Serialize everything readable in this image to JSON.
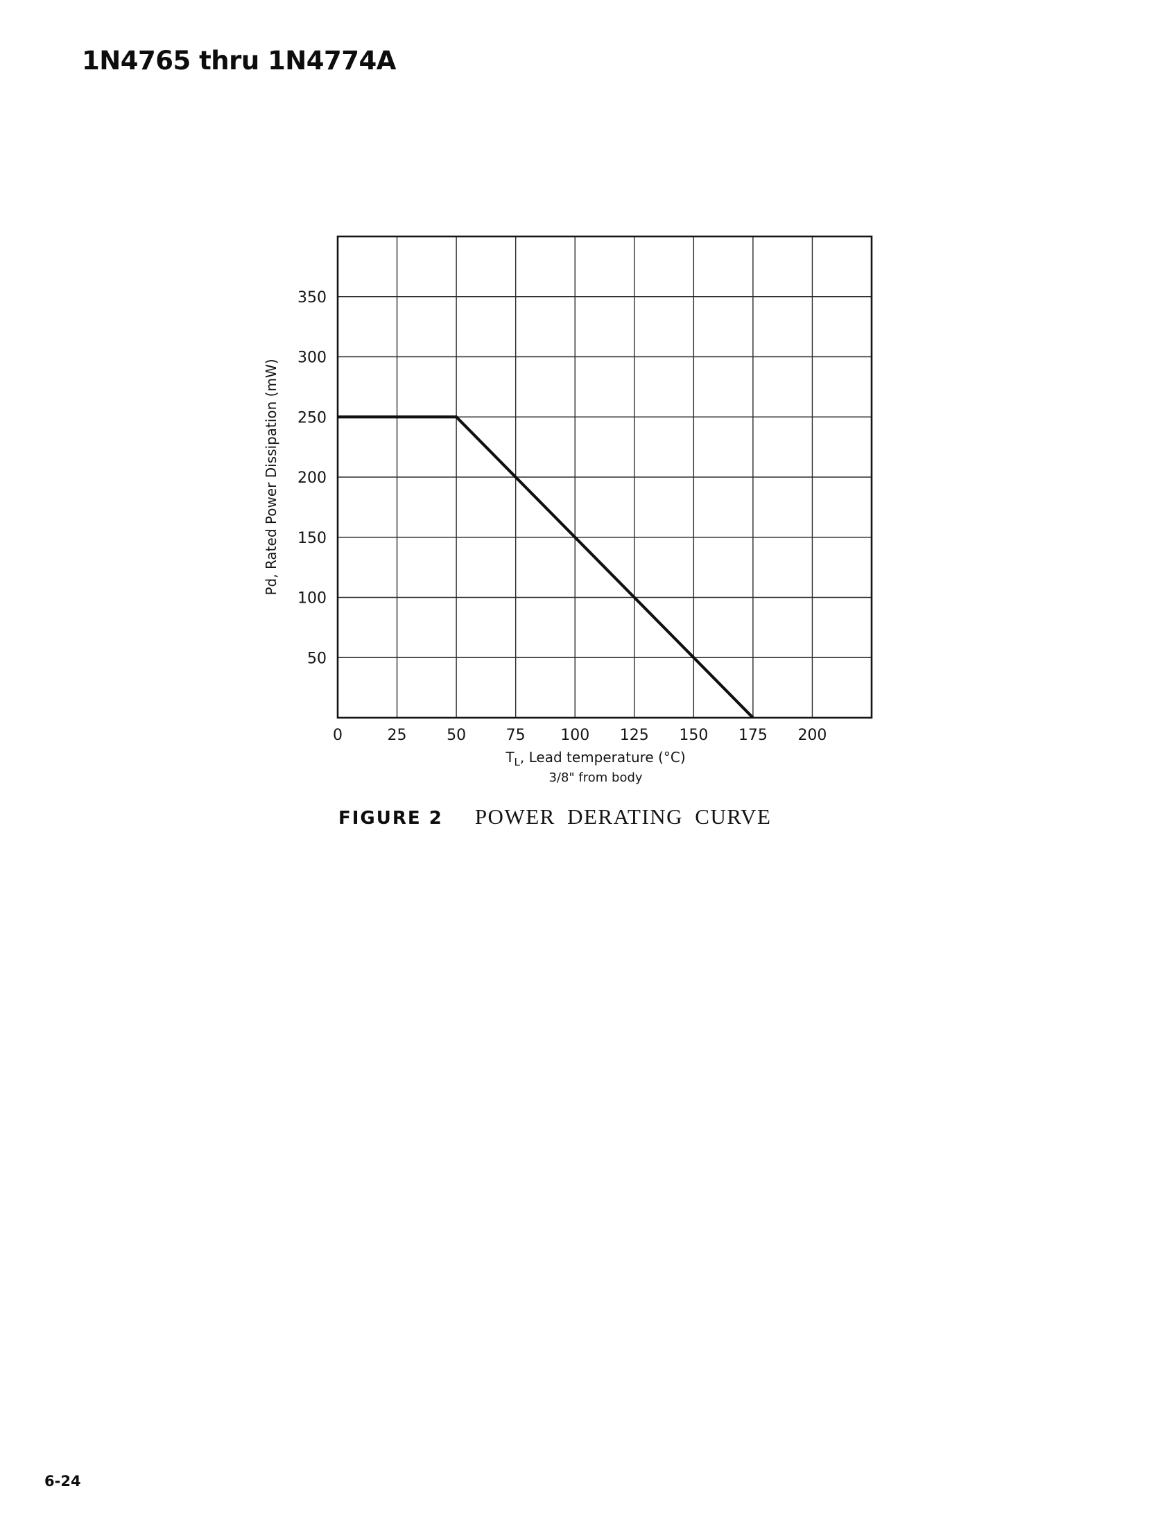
{
  "page": {
    "heading": "1N4765 thru 1N4774A",
    "page_number": "6-24"
  },
  "figure": {
    "label": "FIGURE 2",
    "title": "POWER DERATING CURVE"
  },
  "chart_data": {
    "type": "line",
    "title": "Power Derating Curve",
    "xlabel": {
      "pre": "T",
      "sub": "L",
      "rest": ", Lead temperature (°C)",
      "line2": "3/8\" from body"
    },
    "ylabel": "Pd, Rated Power Dissipation  (mW)",
    "xlim": [
      0,
      225
    ],
    "ylim": [
      0,
      400
    ],
    "x_ticks": [
      0,
      25,
      50,
      75,
      100,
      125,
      150,
      175,
      200
    ],
    "y_ticks": [
      50,
      100,
      150,
      200,
      250,
      300,
      350
    ],
    "grid": true,
    "legend": "none",
    "series": [
      {
        "name": "rated-power-dissipation",
        "points": [
          [
            0,
            250
          ],
          [
            50,
            250
          ],
          [
            175,
            0
          ]
        ]
      }
    ]
  }
}
